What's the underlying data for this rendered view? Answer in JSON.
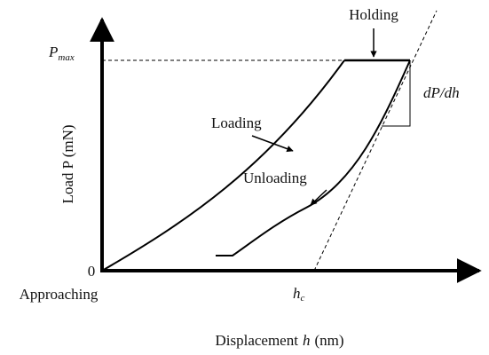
{
  "labels": {
    "holding": "Holding",
    "pmax": {
      "base": "P",
      "sub": "max"
    },
    "loading": "Loading",
    "slope": "dP/dh",
    "unloading": "Unloading",
    "y_axis": "Load P (mN)",
    "origin": "0",
    "approaching": "Approaching",
    "hc": {
      "base": "h",
      "sub": "c"
    },
    "x_axis": {
      "before": "Displacement",
      "var": "h",
      "after": "(nm)"
    }
  }
}
